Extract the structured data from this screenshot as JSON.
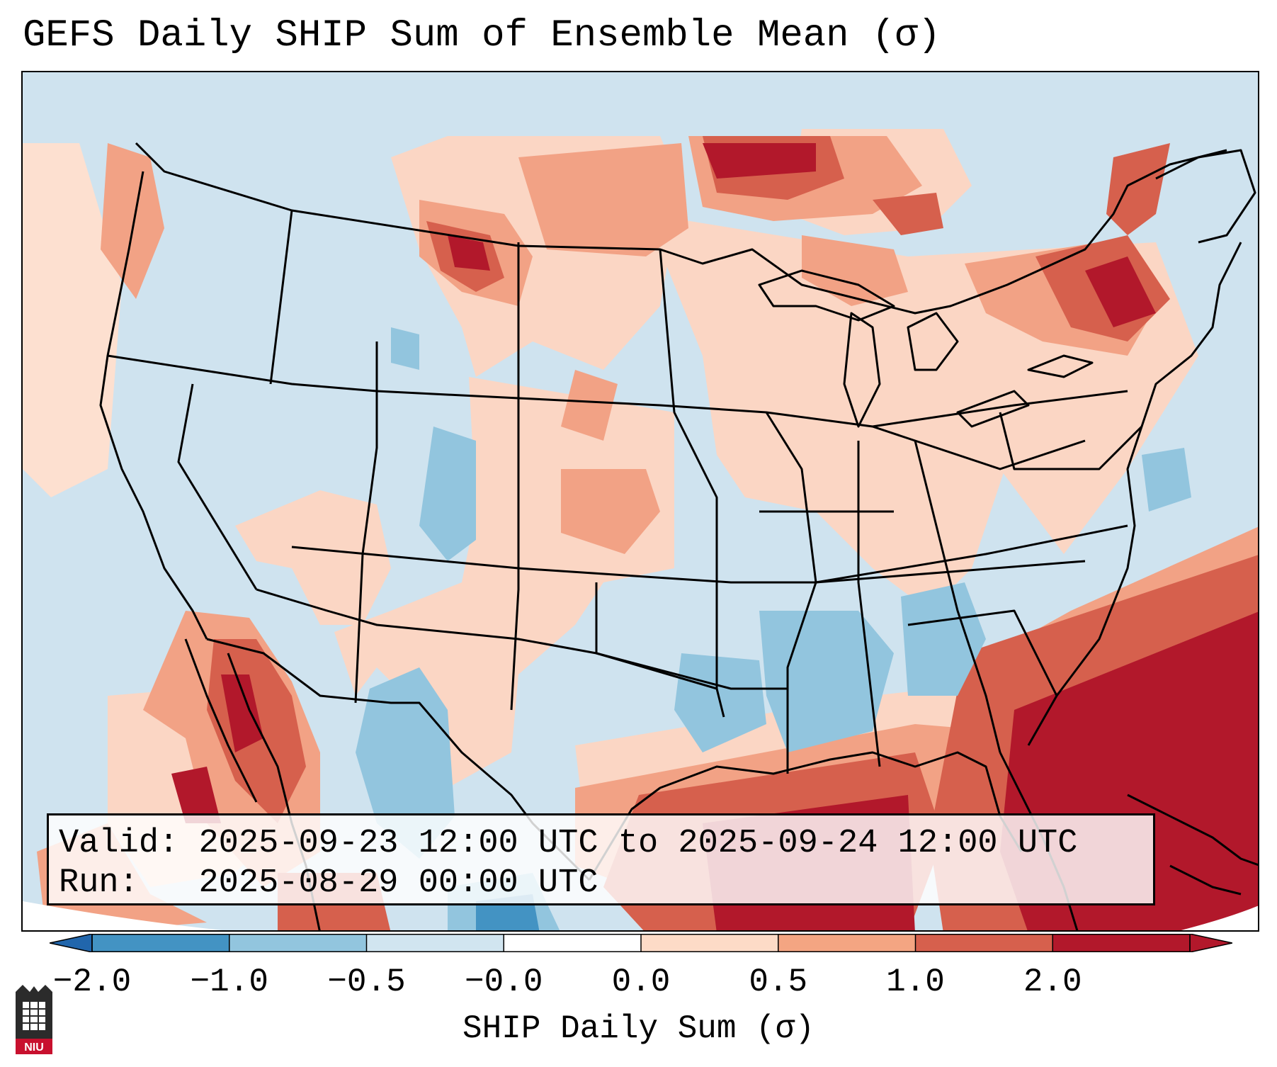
{
  "title": "GEFS Daily SHIP Sum of Ensemble Mean (σ)",
  "info": {
    "valid_label": "Valid:",
    "valid_value": "2025-09-23 12:00 UTC to 2025-09-24 12:00 UTC",
    "run_label": "Run:",
    "run_value": "2025-08-29 00:00 UTC"
  },
  "colorbar": {
    "label": "SHIP Daily Sum (σ)",
    "ticks": [
      "−2.0",
      "−1.0",
      "−0.5",
      "−0.0",
      "0.0",
      "0.5",
      "1.0",
      "2.0"
    ],
    "colors": {
      "below_min": "#2166ac",
      "bins": [
        "#4393c3",
        "#92c5de",
        "#d1e5f0",
        "#ffffff",
        "#fddbc7",
        "#f4a582",
        "#d6604d",
        "#b2182b"
      ],
      "above_max": "#b2182b"
    }
  },
  "map": {
    "projection": "Lambert Conformal",
    "domain": "Continental United States",
    "ocean_color": "#cfe3ef"
  },
  "logo": {
    "text": "NIU",
    "color": "#c8102e"
  }
}
